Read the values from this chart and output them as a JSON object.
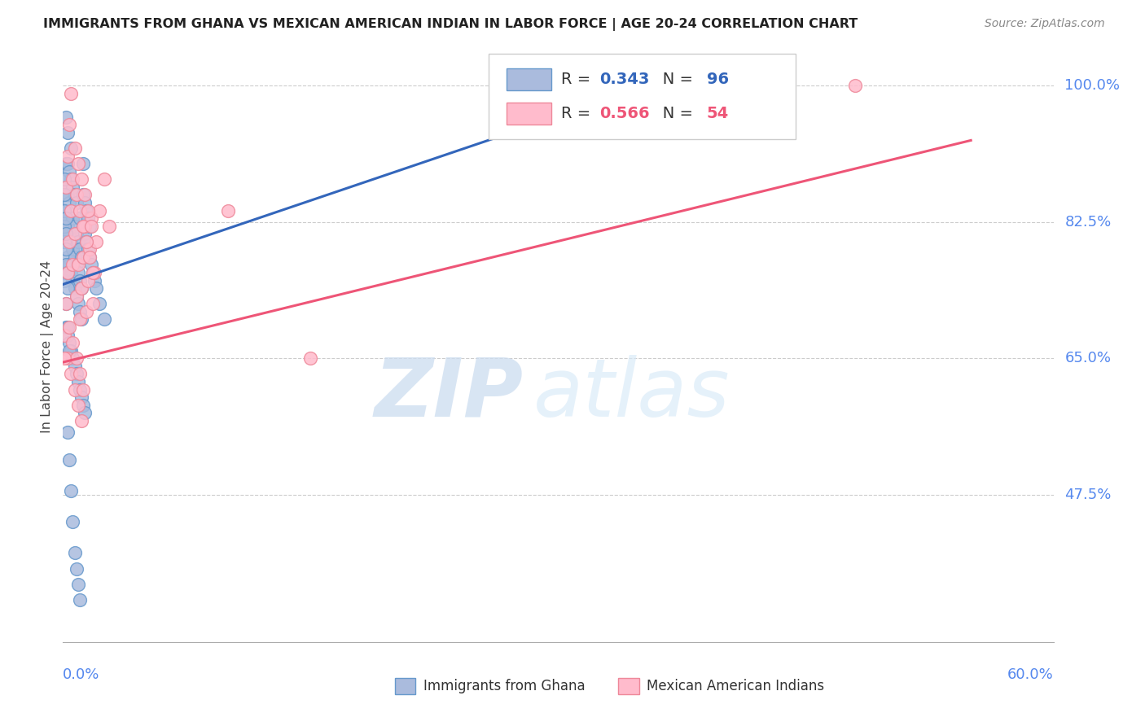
{
  "title": "IMMIGRANTS FROM GHANA VS MEXICAN AMERICAN INDIAN IN LABOR FORCE | AGE 20-24 CORRELATION CHART",
  "source": "Source: ZipAtlas.com",
  "ylabel": "In Labor Force | Age 20-24",
  "ytick_values": [
    1.0,
    0.825,
    0.65,
    0.475
  ],
  "ytick_labels": [
    "100.0%",
    "82.5%",
    "65.0%",
    "47.5%"
  ],
  "xmin": 0.0,
  "xmax": 0.6,
  "ymin": 0.285,
  "ymax": 1.045,
  "ghana_color": "#6699CC",
  "ghana_fill": "#AABBDD",
  "mexican_color": "#EE8899",
  "mexican_fill": "#FFBBCC",
  "trend_blue": "#3366BB",
  "trend_pink": "#EE5577",
  "R_ghana": "0.343",
  "N_ghana": "96",
  "R_mexican": "0.566",
  "N_mexican": "54",
  "legend_label_ghana": "Immigrants from Ghana",
  "legend_label_mexican": "Mexican American Indians",
  "watermark_zip": "ZIP",
  "watermark_atlas": "atlas",
  "bg_color": "#FFFFFF",
  "grid_color": "#CCCCCC",
  "axis_color": "#5588EE",
  "title_color": "#222222",
  "blue_trend_x0": 0.0,
  "blue_trend_y0": 0.745,
  "blue_trend_x1": 0.355,
  "blue_trend_y1": 1.0,
  "pink_trend_x0": 0.0,
  "pink_trend_y0": 0.645,
  "pink_trend_x1": 0.55,
  "pink_trend_y1": 0.93,
  "ghana_x": [
    0.001,
    0.001,
    0.001,
    0.002,
    0.002,
    0.002,
    0.002,
    0.003,
    0.003,
    0.003,
    0.003,
    0.003,
    0.004,
    0.004,
    0.004,
    0.004,
    0.005,
    0.005,
    0.005,
    0.005,
    0.005,
    0.006,
    0.006,
    0.006,
    0.006,
    0.007,
    0.007,
    0.007,
    0.007,
    0.008,
    0.008,
    0.008,
    0.008,
    0.009,
    0.009,
    0.009,
    0.01,
    0.01,
    0.01,
    0.01,
    0.011,
    0.011,
    0.011,
    0.012,
    0.012,
    0.012,
    0.013,
    0.013,
    0.014,
    0.014,
    0.015,
    0.015,
    0.016,
    0.016,
    0.017,
    0.018,
    0.019,
    0.02,
    0.022,
    0.025,
    0.002,
    0.003,
    0.004,
    0.005,
    0.006,
    0.007,
    0.008,
    0.009,
    0.01,
    0.011,
    0.012,
    0.013,
    0.003,
    0.004,
    0.005,
    0.006,
    0.007,
    0.008,
    0.009,
    0.01,
    0.001,
    0.002,
    0.003,
    0.004,
    0.001,
    0.002,
    0.003,
    0.001,
    0.002,
    0.003,
    0.001,
    0.002,
    0.001,
    0.002,
    0.001,
    0.355
  ],
  "ghana_y": [
    0.76,
    0.8,
    0.84,
    0.83,
    0.87,
    0.9,
    0.96,
    0.78,
    0.82,
    0.86,
    0.9,
    0.94,
    0.77,
    0.81,
    0.85,
    0.89,
    0.76,
    0.8,
    0.84,
    0.88,
    0.92,
    0.75,
    0.79,
    0.83,
    0.87,
    0.74,
    0.78,
    0.82,
    0.86,
    0.73,
    0.77,
    0.81,
    0.85,
    0.72,
    0.76,
    0.8,
    0.71,
    0.75,
    0.79,
    0.83,
    0.7,
    0.74,
    0.78,
    0.82,
    0.86,
    0.9,
    0.81,
    0.85,
    0.8,
    0.84,
    0.79,
    0.83,
    0.78,
    0.82,
    0.77,
    0.76,
    0.75,
    0.74,
    0.72,
    0.7,
    0.69,
    0.68,
    0.67,
    0.66,
    0.65,
    0.64,
    0.63,
    0.62,
    0.61,
    0.6,
    0.59,
    0.58,
    0.555,
    0.52,
    0.48,
    0.44,
    0.4,
    0.38,
    0.36,
    0.34,
    0.75,
    0.72,
    0.69,
    0.66,
    0.8,
    0.77,
    0.74,
    0.82,
    0.79,
    0.76,
    0.84,
    0.81,
    0.86,
    0.83,
    0.88,
    1.0
  ],
  "mexican_x": [
    0.001,
    0.002,
    0.003,
    0.004,
    0.005,
    0.006,
    0.007,
    0.008,
    0.009,
    0.01,
    0.011,
    0.012,
    0.013,
    0.014,
    0.015,
    0.016,
    0.017,
    0.018,
    0.019,
    0.02,
    0.022,
    0.025,
    0.028,
    0.002,
    0.003,
    0.004,
    0.005,
    0.006,
    0.007,
    0.008,
    0.009,
    0.01,
    0.011,
    0.012,
    0.013,
    0.014,
    0.015,
    0.016,
    0.017,
    0.018,
    0.003,
    0.004,
    0.005,
    0.006,
    0.007,
    0.008,
    0.009,
    0.01,
    0.011,
    0.012,
    0.1,
    0.15,
    0.48,
    0.001
  ],
  "mexican_y": [
    0.68,
    0.72,
    0.76,
    0.8,
    0.84,
    0.77,
    0.81,
    0.73,
    0.77,
    0.7,
    0.74,
    0.78,
    0.82,
    0.71,
    0.75,
    0.79,
    0.83,
    0.72,
    0.76,
    0.8,
    0.84,
    0.88,
    0.82,
    0.87,
    0.91,
    0.95,
    0.99,
    0.88,
    0.92,
    0.86,
    0.9,
    0.84,
    0.88,
    0.82,
    0.86,
    0.8,
    0.84,
    0.78,
    0.82,
    0.76,
    0.65,
    0.69,
    0.63,
    0.67,
    0.61,
    0.65,
    0.59,
    0.63,
    0.57,
    0.61,
    0.84,
    0.65,
    1.0,
    0.65
  ]
}
